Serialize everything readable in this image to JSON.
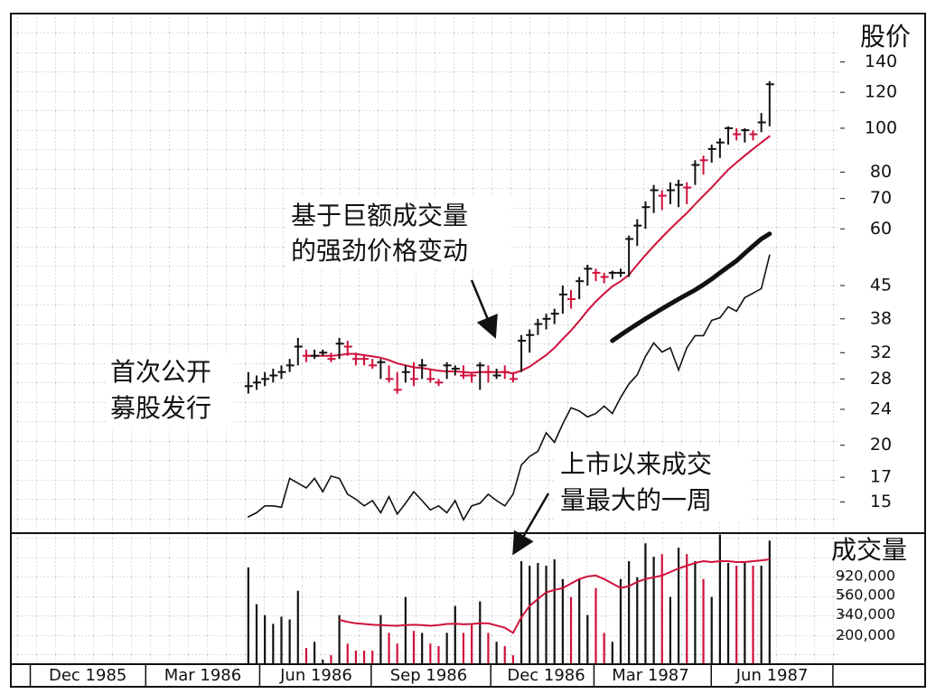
{
  "chart_data": {
    "type": "stock",
    "y_label": "股价",
    "x": [
      24,
      25,
      26,
      27,
      28,
      29,
      30,
      31,
      32,
      33,
      34,
      35,
      36,
      37,
      38,
      39,
      40,
      41,
      42,
      43,
      44,
      45,
      46,
      47,
      48,
      49,
      50,
      51,
      52,
      53,
      54,
      55,
      56,
      57,
      58,
      59,
      60,
      61,
      62,
      63,
      64,
      65,
      66,
      67,
      68,
      69,
      70,
      71,
      72,
      73,
      74,
      75,
      76,
      77,
      78,
      79,
      80,
      81,
      82,
      83,
      84,
      85,
      86,
      87
    ],
    "high": [
      29,
      28.5,
      29,
      29.5,
      30,
      31,
      34.5,
      32.5,
      32.5,
      32.5,
      32,
      34.5,
      34,
      32,
      31.5,
      31,
      31,
      30,
      29,
      30,
      30.5,
      31,
      29.5,
      28,
      30.5,
      30,
      30,
      29,
      30.5,
      30,
      29.5,
      30,
      29,
      35,
      36,
      38,
      39,
      40,
      45,
      44,
      47,
      50,
      49,
      48,
      48.5,
      49,
      58,
      63,
      69,
      75,
      73,
      76,
      77,
      76,
      85,
      87,
      92,
      95,
      101,
      100,
      100,
      99,
      108,
      127
    ],
    "low": [
      26,
      26.5,
      27,
      27.5,
      28,
      29,
      30,
      30.5,
      31,
      31.5,
      30.5,
      31,
      31.5,
      30,
      30,
      29.5,
      28,
      27.5,
      26,
      27.5,
      27,
      28,
      27.5,
      27,
      28,
      28.5,
      28,
      27.5,
      26.5,
      27.5,
      28,
      28,
      27.5,
      29,
      32,
      35,
      36,
      37,
      39,
      40,
      42,
      45,
      46,
      45.5,
      46.5,
      47,
      47,
      55,
      60,
      65,
      66,
      68,
      67,
      68,
      75,
      79,
      84,
      86,
      92,
      94,
      93,
      94,
      98,
      101
    ],
    "close": [
      27,
      27.5,
      28,
      28.5,
      29,
      30,
      33,
      31.5,
      31.5,
      32,
      31,
      33.5,
      33,
      31,
      31,
      30,
      30.5,
      28,
      26.5,
      29,
      28,
      30,
      28,
      27.5,
      30,
      29.5,
      28.5,
      28.5,
      30,
      29,
      28.5,
      29,
      28,
      34,
      35,
      37,
      38,
      39,
      43,
      42,
      46,
      49,
      48,
      47,
      48,
      48,
      57,
      61,
      67,
      73,
      71,
      73,
      75,
      74,
      83,
      85,
      90,
      93,
      100,
      97,
      99,
      97,
      103,
      125
    ],
    "bar_colors": [
      "#111111",
      "#111111",
      "#111111",
      "#111111",
      "#111111",
      "#111111",
      "#111111",
      "#d0103a",
      "#111111",
      "#111111",
      "#d0103a",
      "#111111",
      "#d0103a",
      "#d0103a",
      "#d0103a",
      "#d0103a",
      "#111111",
      "#d0103a",
      "#d0103a",
      "#111111",
      "#d0103a",
      "#111111",
      "#d0103a",
      "#d0103a",
      "#111111",
      "#111111",
      "#d0103a",
      "#d0103a",
      "#111111",
      "#d0103a",
      "#111111",
      "#d0103a",
      "#d0103a",
      "#111111",
      "#111111",
      "#111111",
      "#111111",
      "#111111",
      "#111111",
      "#d0103a",
      "#111111",
      "#111111",
      "#d0103a",
      "#d0103a",
      "#111111",
      "#111111",
      "#111111",
      "#111111",
      "#111111",
      "#111111",
      "#d0103a",
      "#111111",
      "#111111",
      "#d0103a",
      "#111111",
      "#d0103a",
      "#111111",
      "#111111",
      "#111111",
      "#d0103a",
      "#111111",
      "#d0103a",
      "#111111",
      "#111111"
    ],
    "lines": [
      {
        "color": "#d0103a",
        "width": 2,
        "values": [
          null,
          null,
          null,
          null,
          null,
          null,
          null,
          31.5,
          31.5,
          31.5,
          31.5,
          31.6,
          31.8,
          31.8,
          31.6,
          31.4,
          31.2,
          30.8,
          30.3,
          30,
          29.7,
          29.6,
          29.4,
          29.2,
          29.1,
          29.1,
          29,
          28.9,
          29,
          29,
          29,
          29,
          28.8,
          29.2,
          29.8,
          30.7,
          31.6,
          32.8,
          34.3,
          35.8,
          37.6,
          39.6,
          41.5,
          43.2,
          44.8,
          46,
          47.5,
          50,
          52.5,
          55,
          57.5,
          60,
          62.5,
          65,
          68,
          71,
          74,
          77.5,
          81,
          84,
          87,
          90,
          93,
          96
        ]
      },
      {
        "color": "#111111",
        "width": 5,
        "values": [
          null,
          null,
          null,
          null,
          null,
          null,
          null,
          null,
          null,
          null,
          null,
          null,
          null,
          null,
          null,
          null,
          null,
          null,
          null,
          null,
          null,
          null,
          null,
          null,
          null,
          null,
          null,
          null,
          null,
          null,
          null,
          null,
          null,
          null,
          null,
          null,
          null,
          null,
          null,
          null,
          null,
          null,
          null,
          null,
          34,
          35,
          36,
          37,
          38,
          39,
          40,
          41,
          42,
          43,
          44,
          45.2,
          46.5,
          48,
          49.5,
          51,
          53,
          55,
          57,
          58.5
        ]
      },
      {
        "color": "#111111",
        "width": 1.6,
        "values": [
          13.9,
          14.2,
          14.7,
          14.7,
          14.6,
          16.9,
          16.5,
          16.1,
          16.9,
          15.8,
          17.1,
          16.9,
          15.6,
          15.2,
          14.7,
          15.1,
          14.2,
          15.4,
          14.1,
          14.9,
          15.8,
          15.1,
          14.4,
          14.7,
          14.2,
          15.1,
          13.7,
          14.7,
          14.9,
          15.6,
          15.1,
          14.7,
          15.6,
          18.1,
          18.9,
          19.4,
          21.3,
          20.3,
          22.3,
          24.2,
          23.8,
          23.1,
          23.5,
          24.4,
          23.5,
          25.5,
          27.3,
          28.6,
          31.4,
          33.6,
          32.1,
          32.8,
          29.3,
          32.8,
          34.9,
          34.9,
          37.7,
          38.2,
          40.4,
          39.5,
          42.3,
          43.3,
          44.3,
          52.5
        ]
      }
    ],
    "ylim": [
      12.8,
      179
    ],
    "log": true,
    "yticks": [
      140,
      120,
      100,
      80,
      70,
      60,
      45,
      38,
      32,
      28,
      24,
      20,
      17,
      15
    ],
    "xlim": [
      -4.7,
      105.8
    ],
    "xticks": [
      {
        "value": 4.6,
        "label": "Dec 1985"
      },
      {
        "value": 18.5,
        "label": "Mar 1986"
      },
      {
        "value": 32.2,
        "label": "Jun 1986"
      },
      {
        "value": 45.8,
        "label": "Sep 1986"
      },
      {
        "value": 60,
        "label": "Dec 1986"
      },
      {
        "value": 72.6,
        "label": "Mar 1987"
      },
      {
        "value": 87.3,
        "label": "Jun 1987"
      }
    ],
    "grid": true,
    "volume": {
      "label": "成交量",
      "log": true,
      "ylim": [
        96000,
        2800000
      ],
      "yticks": [
        {
          "value": 920000,
          "label": "920,000"
        },
        {
          "value": 560000,
          "label": "560,000"
        },
        {
          "value": 340000,
          "label": "340,000"
        },
        {
          "value": 200000,
          "label": "200,000"
        }
      ],
      "values": [
        1160000,
        450000,
        340000,
        271000,
        326000,
        304000,
        636000,
        146000,
        171000,
        108000,
        121000,
        340000,
        163000,
        136000,
        136000,
        136000,
        340000,
        215000,
        163000,
        542000,
        226000,
        215000,
        163000,
        153000,
        215000,
        430000,
        215000,
        271000,
        483000,
        215000,
        171000,
        153000,
        121000,
        1361000,
        1213000,
        1300000,
        1213000,
        1425000,
        859000,
        542000,
        859000,
        340000,
        682000,
        215000,
        171000,
        859000,
        1361000,
        900000,
        2158000,
        1527000,
        1637000,
        542000,
        1924000,
        1637000,
        1361000,
        859000,
        542000,
        2700000,
        1300000,
        1213000,
        1300000,
        1213000,
        1213000,
        2313000
      ],
      "ma": {
        "color": "#d0103a",
        "values": [
          null,
          null,
          null,
          null,
          null,
          null,
          null,
          null,
          null,
          null,
          null,
          300000,
          285000,
          275000,
          270000,
          265000,
          262000,
          260000,
          258000,
          262000,
          265000,
          262000,
          258000,
          262000,
          270000,
          272000,
          268000,
          270000,
          275000,
          275000,
          260000,
          245000,
          215000,
          320000,
          430000,
          515000,
          610000,
          650000,
          682000,
          765000,
          859000,
          920000,
          940000,
          859000,
          765000,
          682000,
          715000,
          800000,
          859000,
          900000,
          940000,
          1030000,
          1130000,
          1213000,
          1300000,
          1361000,
          1330000,
          1361000,
          1361000,
          1330000,
          1330000,
          1361000,
          1390000,
          1425000
        ]
      }
    },
    "annotations": [
      {
        "lines": [
          "基于巨额成交量",
          "的强劲价格变动"
        ]
      },
      {
        "lines": [
          "首次公开",
          "募股发行"
        ]
      },
      {
        "lines": [
          "上市以来成交",
          "量最大的一周"
        ]
      }
    ]
  }
}
